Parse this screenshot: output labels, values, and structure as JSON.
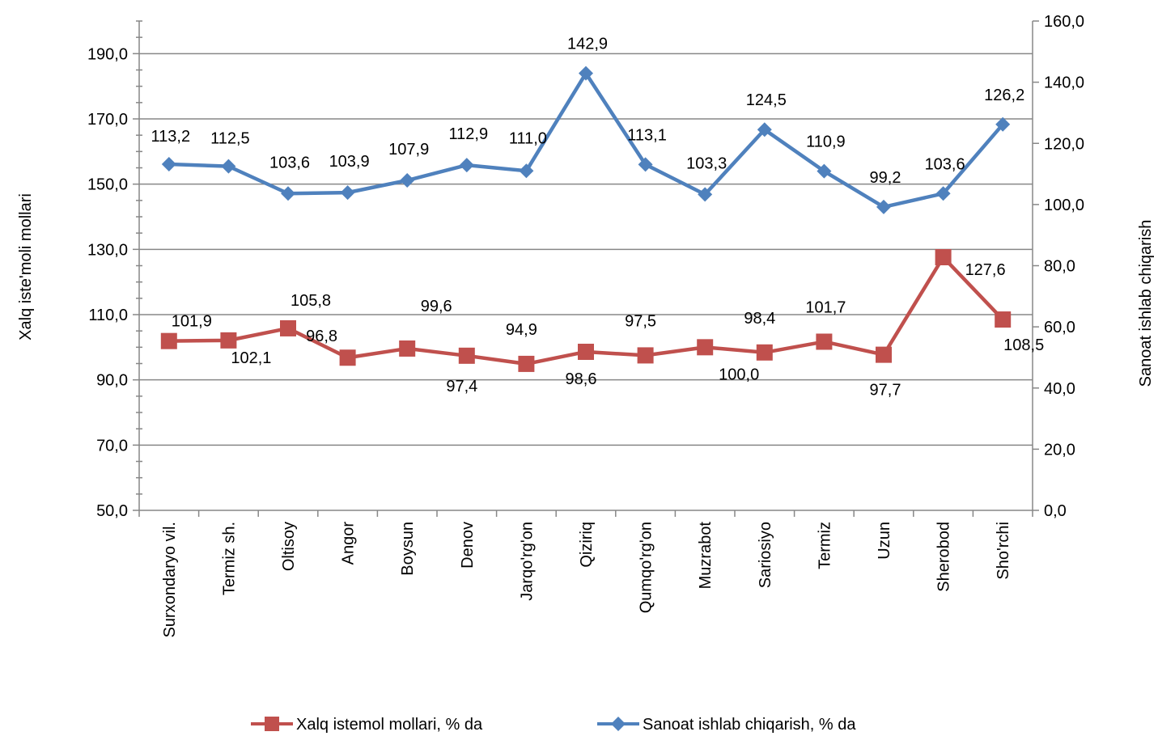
{
  "chart_data": {
    "type": "line",
    "categories": [
      "Surxondaryo vil.",
      "Termiz sh.",
      "Oltisoy",
      "Angor",
      "Boysun",
      "Denov",
      "Jarqo'rg'on",
      "Qiziriq",
      "Qumqo'rg'on",
      "Muzrabot",
      "Sariosiyo",
      "Termiz",
      "Uzun",
      "Sherobod",
      "Sho'rchi"
    ],
    "series": [
      {
        "name": "Xalq istemol mollari, % da",
        "axis": "left",
        "color": "#C0504D",
        "marker": "square",
        "values": [
          101.9,
          102.1,
          105.8,
          96.8,
          99.6,
          97.4,
          94.9,
          98.6,
          97.5,
          100.0,
          98.4,
          101.7,
          97.7,
          127.6,
          108.5
        ],
        "labels": [
          "101,9",
          "102,1",
          "105,8",
          "96,8",
          "99,6",
          "97,4",
          "94,9",
          "98,6",
          "97,5",
          "100,0",
          "98,4",
          "101,7",
          "97,7",
          "127,6",
          "108,5"
        ]
      },
      {
        "name": "Sanoat ishlab chiqarish, % da",
        "axis": "right",
        "color": "#4F81BD",
        "marker": "diamond",
        "values": [
          113.2,
          112.5,
          103.6,
          103.9,
          107.9,
          112.9,
          111.0,
          142.9,
          113.1,
          103.3,
          124.5,
          110.9,
          99.2,
          103.6,
          126.2
        ],
        "labels": [
          "113,2",
          "112,5",
          "103,6",
          "103,9",
          "107,9",
          "112,9",
          "111,0",
          "142,9",
          "113,1",
          "103,3",
          "124,5",
          "110,9",
          "99,2",
          "103,6",
          "126,2"
        ]
      }
    ],
    "y_left": {
      "label": "Xalq iste'moli mollari",
      "lim": [
        50,
        200
      ],
      "ticks": [
        50,
        70,
        90,
        110,
        130,
        150,
        170,
        190
      ],
      "tick_labels": [
        "50,0",
        "70,0",
        "90,0",
        "110,0",
        "130,0",
        "150,0",
        "170,0",
        "190,0"
      ]
    },
    "y_right": {
      "label": "Sanoat ishlab chiqarish",
      "lim": [
        0,
        160
      ],
      "ticks": [
        0,
        20,
        40,
        60,
        80,
        100,
        120,
        140,
        160
      ],
      "tick_labels": [
        "0,0",
        "20,0",
        "40,0",
        "60,0",
        "80,0",
        "100,0",
        "120,0",
        "140,0",
        "160,0"
      ]
    },
    "grid": true,
    "legend_position": "bottom"
  }
}
